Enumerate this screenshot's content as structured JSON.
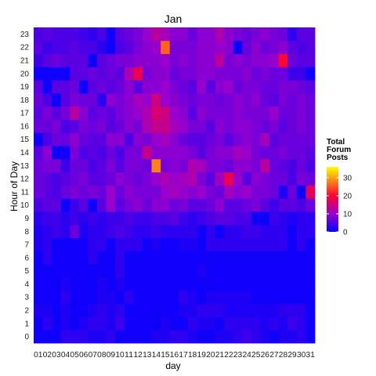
{
  "chart_data": {
    "type": "heatmap",
    "title": "Jan",
    "xlabel": "day",
    "ylabel": "Hour of Day",
    "x_categories": [
      "01",
      "02",
      "03",
      "04",
      "05",
      "06",
      "07",
      "08",
      "09",
      "10",
      "11",
      "12",
      "13",
      "14",
      "15",
      "16",
      "17",
      "18",
      "19",
      "20",
      "21",
      "22",
      "23",
      "24",
      "25",
      "26",
      "27",
      "28",
      "29",
      "30",
      "31"
    ],
    "y_categories": [
      "0",
      "1",
      "2",
      "3",
      "4",
      "5",
      "6",
      "7",
      "8",
      "9",
      "10",
      "11",
      "12",
      "13",
      "14",
      "15",
      "16",
      "17",
      "18",
      "19",
      "20",
      "21",
      "22",
      "23"
    ],
    "value_range": [
      0,
      36
    ],
    "legend": {
      "title": "Total\nForum\nPosts",
      "ticks": [
        0,
        10,
        20,
        30
      ],
      "position": "right",
      "colors": [
        "#0000ff",
        "#9900cc",
        "#ff0033",
        "#ffff00"
      ]
    },
    "grid": false,
    "values": [
      [
        1,
        1,
        1,
        3,
        3,
        3,
        2,
        2,
        3,
        1,
        1,
        1,
        1,
        2,
        2,
        3,
        3,
        2,
        1,
        1,
        2,
        2,
        3,
        4,
        3,
        2,
        1,
        2,
        2,
        3,
        1
      ],
      [
        1,
        3,
        1,
        2,
        1,
        2,
        3,
        3,
        2,
        4,
        1,
        1,
        1,
        1,
        2,
        1,
        1,
        3,
        2,
        2,
        1,
        3,
        3,
        3,
        3,
        2,
        3,
        2,
        4,
        3,
        1
      ],
      [
        2,
        2,
        1,
        2,
        1,
        1,
        2,
        3,
        2,
        3,
        1,
        1,
        1,
        1,
        1,
        1,
        2,
        2,
        3,
        3,
        3,
        2,
        2,
        2,
        2,
        2,
        2,
        3,
        3,
        3,
        1
      ],
      [
        1,
        1,
        1,
        3,
        1,
        1,
        1,
        2,
        2,
        1,
        3,
        1,
        1,
        1,
        1,
        1,
        3,
        2,
        1,
        2,
        2,
        2,
        2,
        2,
        1,
        1,
        1,
        1,
        1,
        1,
        1
      ],
      [
        1,
        1,
        1,
        2,
        1,
        1,
        1,
        2,
        1,
        2,
        1,
        1,
        1,
        1,
        1,
        1,
        1,
        1,
        1,
        1,
        1,
        1,
        1,
        1,
        1,
        1,
        1,
        1,
        1,
        1,
        1
      ],
      [
        1,
        1,
        1,
        1,
        1,
        1,
        1,
        1,
        1,
        3,
        1,
        1,
        1,
        1,
        1,
        1,
        1,
        1,
        2,
        1,
        1,
        1,
        1,
        1,
        1,
        1,
        1,
        1,
        1,
        1,
        1
      ],
      [
        1,
        3,
        1,
        1,
        1,
        1,
        3,
        1,
        1,
        3,
        1,
        1,
        1,
        1,
        1,
        1,
        1,
        1,
        1,
        1,
        1,
        1,
        1,
        1,
        1,
        1,
        1,
        1,
        1,
        1,
        1
      ],
      [
        2,
        3,
        1,
        1,
        1,
        1,
        3,
        3,
        1,
        3,
        3,
        3,
        1,
        2,
        1,
        1,
        2,
        2,
        1,
        3,
        3,
        3,
        3,
        3,
        3,
        3,
        3,
        3,
        1,
        3,
        1
      ],
      [
        2,
        3,
        4,
        3,
        7,
        2,
        3,
        3,
        4,
        5,
        4,
        3,
        3,
        4,
        3,
        3,
        3,
        3,
        1,
        3,
        1,
        3,
        3,
        4,
        4,
        3,
        3,
        3,
        1,
        3,
        3
      ],
      [
        3,
        4,
        4,
        3,
        4,
        3,
        4,
        3,
        4,
        4,
        5,
        4,
        4,
        5,
        5,
        6,
        4,
        3,
        4,
        5,
        6,
        6,
        5,
        5,
        1,
        1,
        4,
        3,
        2,
        3,
        3
      ],
      [
        5,
        6,
        6,
        1,
        4,
        6,
        1,
        6,
        10,
        6,
        8,
        9,
        7,
        9,
        9,
        7,
        8,
        6,
        6,
        7,
        9,
        6,
        6,
        7,
        8,
        6,
        4,
        6,
        6,
        5,
        7
      ],
      [
        7,
        6,
        5,
        7,
        8,
        7,
        8,
        7,
        10,
        7,
        9,
        8,
        8,
        8,
        10,
        11,
        10,
        9,
        10,
        8,
        7,
        11,
        9,
        10,
        8,
        8,
        7,
        2,
        7,
        1,
        17
      ],
      [
        7,
        6,
        5,
        6,
        7,
        8,
        6,
        6,
        7,
        9,
        8,
        7,
        8,
        10,
        12,
        10,
        11,
        12,
        8,
        6,
        11,
        18,
        10,
        6,
        9,
        8,
        7,
        7,
        5,
        8,
        7
      ],
      [
        7,
        8,
        8,
        4,
        7,
        7,
        5,
        6,
        8,
        6,
        8,
        8,
        7,
        28,
        8,
        9,
        8,
        12,
        11,
        8,
        8,
        7,
        9,
        9,
        8,
        13,
        7,
        6,
        5,
        7,
        5
      ],
      [
        6,
        9,
        1,
        1,
        8,
        5,
        6,
        5,
        7,
        5,
        8,
        8,
        14,
        9,
        9,
        9,
        9,
        8,
        6,
        8,
        9,
        9,
        11,
        10,
        8,
        7,
        7,
        8,
        7,
        7,
        6
      ],
      [
        1,
        5,
        7,
        7,
        9,
        7,
        6,
        6,
        9,
        9,
        5,
        9,
        8,
        10,
        11,
        9,
        7,
        6,
        6,
        7,
        8,
        6,
        8,
        9,
        8,
        11,
        6,
        7,
        7,
        7,
        7
      ],
      [
        7,
        7,
        8,
        5,
        6,
        8,
        7,
        8,
        6,
        7,
        9,
        8,
        12,
        14,
        14,
        11,
        10,
        8,
        8,
        6,
        9,
        8,
        9,
        9,
        8,
        7,
        8,
        6,
        7,
        8,
        7
      ],
      [
        6,
        8,
        6,
        8,
        13,
        9,
        6,
        7,
        6,
        8,
        9,
        10,
        12,
        16,
        15,
        10,
        9,
        6,
        9,
        8,
        8,
        8,
        9,
        8,
        8,
        8,
        10,
        7,
        7,
        8,
        7
      ],
      [
        7,
        5,
        1,
        6,
        8,
        7,
        7,
        3,
        9,
        8,
        9,
        11,
        10,
        15,
        10,
        9,
        8,
        7,
        8,
        8,
        7,
        8,
        9,
        8,
        9,
        7,
        6,
        8,
        7,
        8,
        7
      ],
      [
        6,
        1,
        6,
        6,
        7,
        1,
        6,
        7,
        6,
        7,
        9,
        6,
        9,
        9,
        10,
        8,
        7,
        6,
        10,
        6,
        9,
        10,
        7,
        8,
        8,
        7,
        7,
        8,
        8,
        7,
        6
      ],
      [
        1,
        1,
        1,
        1,
        6,
        6,
        7,
        6,
        7,
        6,
        12,
        18,
        8,
        9,
        9,
        7,
        8,
        8,
        9,
        9,
        8,
        8,
        8,
        9,
        7,
        8,
        7,
        7,
        4,
        4,
        1
      ],
      [
        4,
        6,
        7,
        6,
        6,
        6,
        1,
        6,
        7,
        8,
        8,
        9,
        9,
        9,
        10,
        8,
        9,
        8,
        9,
        9,
        13,
        8,
        9,
        8,
        9,
        9,
        10,
        20,
        7,
        6,
        6
      ],
      [
        6,
        4,
        5,
        5,
        6,
        5,
        5,
        3,
        1,
        5,
        6,
        8,
        9,
        10,
        26,
        8,
        8,
        8,
        9,
        9,
        10,
        9,
        1,
        7,
        9,
        7,
        8,
        9,
        6,
        5,
        6
      ],
      [
        5,
        6,
        5,
        5,
        5,
        4,
        3,
        5,
        1,
        6,
        7,
        8,
        10,
        13,
        11,
        9,
        9,
        7,
        9,
        9,
        12,
        9,
        8,
        7,
        8,
        9,
        8,
        7,
        3,
        6,
        6
      ]
    ]
  }
}
